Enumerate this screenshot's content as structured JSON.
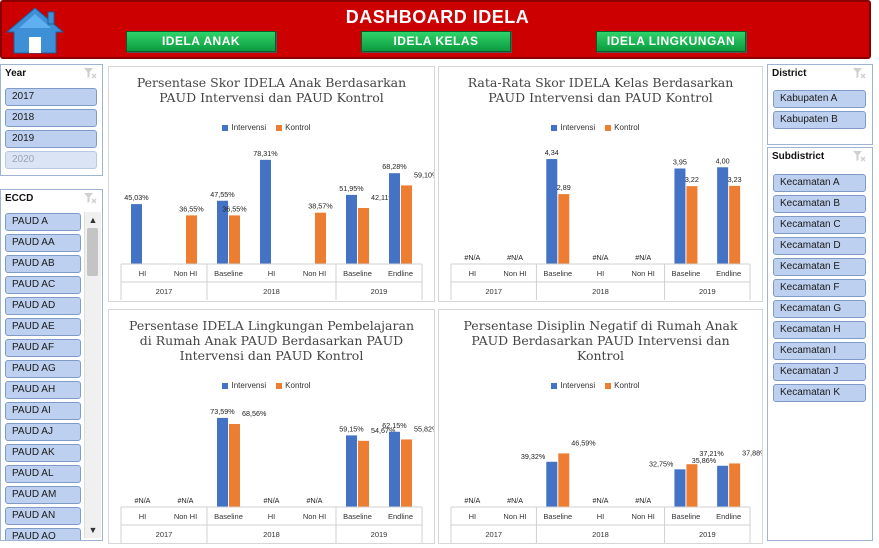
{
  "header": {
    "title": "DASHBOARD IDELA",
    "nav": [
      "IDELA ANAK",
      "IDELA KELAS",
      "IDELA LINGKUNGAN"
    ]
  },
  "colors": {
    "intervensi": "#4472c4",
    "kontrol": "#ed7d31",
    "header": "#cc0000",
    "nav": "#16b04e"
  },
  "slicers": {
    "year": {
      "title": "Year",
      "items": [
        "2017",
        "2018",
        "2019",
        "2020"
      ],
      "disabled": [
        "2020"
      ]
    },
    "eccd": {
      "title": "ECCD",
      "items": [
        "PAUD A",
        "PAUD AA",
        "PAUD AB",
        "PAUD AC",
        "PAUD AD",
        "PAUD AE",
        "PAUD AF",
        "PAUD AG",
        "PAUD AH",
        "PAUD AI",
        "PAUD AJ",
        "PAUD AK",
        "PAUD AL",
        "PAUD AM",
        "PAUD AN",
        "PAUD AO"
      ]
    },
    "district": {
      "title": "District",
      "items": [
        "Kabupaten A",
        "Kabupaten B"
      ]
    },
    "subdistrict": {
      "title": "Subdistrict",
      "items": [
        "Kecamatan A",
        "Kecamatan B",
        "Kecamatan C",
        "Kecamatan D",
        "Kecamatan E",
        "Kecamatan F",
        "Kecamatan G",
        "Kecamatan H",
        "Kecamatan I",
        "Kecamatan J",
        "Kecamatan K"
      ]
    }
  },
  "chart_data": [
    {
      "type": "bar",
      "title_lines": [
        "Persentase Skor IDELA Anak Berdasarkan",
        "PAUD Intervensi dan PAUD Kontrol"
      ],
      "legend": [
        "Intervensi",
        "Kontrol"
      ],
      "categories": [
        "HI",
        "Non HI",
        "Baseline",
        "HI",
        "Non HI",
        "Baseline",
        "Endline"
      ],
      "groups": [
        {
          "label": "2017",
          "span": 2
        },
        {
          "label": "2018",
          "span": 3
        },
        {
          "label": "2019",
          "span": 2
        }
      ],
      "ylim": [
        0,
        100
      ],
      "series": [
        {
          "name": "Intervensi",
          "values": [
            45.03,
            null,
            47.55,
            78.31,
            null,
            51.95,
            68.28
          ],
          "labels": [
            "45,03%",
            "",
            "47,55%",
            "78,31%",
            "",
            "51,95%",
            "68,28%"
          ]
        },
        {
          "name": "Kontrol",
          "values": [
            null,
            36.55,
            36.55,
            null,
            38.57,
            42.11,
            59.1
          ],
          "labels": [
            "",
            "36,55%",
            "36,55%",
            "",
            "38,57%",
            "42,11%",
            "59,10%"
          ]
        }
      ]
    },
    {
      "type": "bar",
      "title_lines": [
        "Rata-Rata Skor IDELA Kelas Berdasarkan",
        "PAUD Intervensi dan PAUD Kontrol"
      ],
      "legend": [
        "Intervensi",
        "Kontrol"
      ],
      "categories": [
        "HI",
        "Non HI",
        "Baseline",
        "HI",
        "Non HI",
        "Baseline",
        "Endline"
      ],
      "groups": [
        {
          "label": "2017",
          "span": 2
        },
        {
          "label": "2018",
          "span": 3
        },
        {
          "label": "2019",
          "span": 2
        }
      ],
      "ylim": [
        0,
        5.5
      ],
      "na_label": "#N/A",
      "series": [
        {
          "name": "Intervensi",
          "values": [
            null,
            null,
            4.34,
            null,
            null,
            3.95,
            4.0
          ],
          "labels": [
            "",
            "",
            "4,34",
            "",
            "",
            "3,95",
            "4,00"
          ]
        },
        {
          "name": "Kontrol",
          "values": [
            null,
            null,
            2.89,
            null,
            null,
            3.22,
            3.23
          ],
          "labels": [
            "",
            "",
            "2,89",
            "",
            "",
            "3,22",
            "3,23"
          ]
        }
      ]
    },
    {
      "type": "bar",
      "title_lines": [
        "Persentase IDELA Lingkungan Pembelajaran",
        "di Rumah Anak PAUD Berdasarkan PAUD",
        "Intervensi dan PAUD Kontrol"
      ],
      "legend": [
        "Intervensi",
        "Kontrol"
      ],
      "categories": [
        "HI",
        "Non HI",
        "Baseline",
        "HI",
        "Non HI",
        "Baseline",
        "Endline"
      ],
      "groups": [
        {
          "label": "2017",
          "span": 2
        },
        {
          "label": "2018",
          "span": 3
        },
        {
          "label": "2019",
          "span": 2
        }
      ],
      "ylim": [
        0,
        95
      ],
      "na_label": "#N/A",
      "series": [
        {
          "name": "Intervensi",
          "values": [
            null,
            null,
            73.59,
            null,
            null,
            59.15,
            62.15
          ],
          "labels": [
            "",
            "",
            "73,59%",
            "",
            "",
            "59,15%",
            "62,15%"
          ]
        },
        {
          "name": "Kontrol",
          "values": [
            null,
            null,
            68.56,
            null,
            null,
            54.67,
            55.82
          ],
          "labels": [
            "",
            "",
            "68,56%",
            "",
            "",
            "54,67%",
            "55,82%"
          ]
        }
      ]
    },
    {
      "type": "bar",
      "title_lines": [
        "Persentase Disiplin Negatif di Rumah Anak",
        "PAUD Berdasarkan PAUD Intervensi dan",
        "Kontrol"
      ],
      "legend": [
        "Intervensi",
        "Kontrol"
      ],
      "categories": [
        "HI",
        "Non HI",
        "Baseline",
        "HI",
        "Non HI",
        "Baseline",
        "Endline"
      ],
      "groups": [
        {
          "label": "2017",
          "span": 2
        },
        {
          "label": "2018",
          "span": 3
        },
        {
          "label": "2019",
          "span": 2
        }
      ],
      "ylim": [
        0,
        100
      ],
      "na_label": "#N/A",
      "series": [
        {
          "name": "Intervensi",
          "values": [
            null,
            null,
            39.32,
            null,
            null,
            32.75,
            35.86
          ],
          "labels": [
            "",
            "",
            "39,32%",
            "",
            "",
            "32,75%",
            "35,86%"
          ]
        },
        {
          "name": "Kontrol",
          "values": [
            null,
            null,
            46.59,
            null,
            null,
            37.21,
            37.88
          ],
          "labels": [
            "",
            "",
            "46,59%",
            "",
            "",
            "37,21%",
            "37,88%"
          ]
        }
      ]
    }
  ]
}
